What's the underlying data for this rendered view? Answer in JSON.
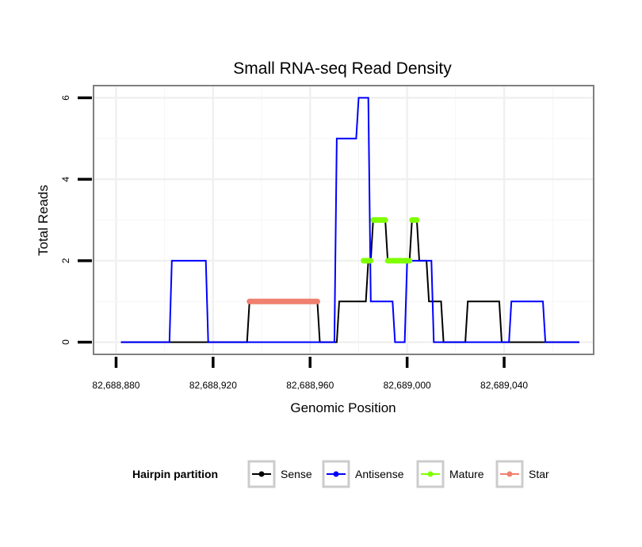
{
  "chart_data": {
    "type": "line",
    "title": "Small RNA-seq Read Density",
    "xlabel": "Genomic Position",
    "ylabel": "Total Reads",
    "xlim": [
      82688880,
      82689080
    ],
    "ylim": [
      -0.3,
      6.3
    ],
    "x_ticks": [
      82688880,
      82688920,
      82688960,
      82689000,
      82689040
    ],
    "x_tick_labels": [
      "82,688,880",
      "82,688,920",
      "82,688,960",
      "82,689,000",
      "82,689,040"
    ],
    "y_ticks": [
      0,
      2,
      4,
      6
    ],
    "y_tick_labels": [
      "0",
      "2",
      "4",
      "6"
    ],
    "grid": true,
    "legend": {
      "title": "Hairpin partition",
      "placement": "bottom",
      "entries": [
        "Sense",
        "Antisense",
        "Mature",
        "Star"
      ]
    },
    "series": [
      {
        "name": "Sense",
        "color": "#000000",
        "style": "line",
        "points": [
          [
            82688882,
            0
          ],
          [
            82688934,
            0
          ],
          [
            82688935,
            1
          ],
          [
            82688963,
            1
          ],
          [
            82688964,
            0
          ],
          [
            82688971,
            0
          ],
          [
            82688972,
            1
          ],
          [
            82688983,
            1
          ],
          [
            82688984,
            2
          ],
          [
            82688985,
            2
          ],
          [
            82688986,
            3
          ],
          [
            82688991,
            3
          ],
          [
            82688992,
            2
          ],
          [
            82689001,
            2
          ],
          [
            82689002,
            3
          ],
          [
            82689004,
            3
          ],
          [
            82689005,
            2
          ],
          [
            82689008,
            2
          ],
          [
            82689009,
            1
          ],
          [
            82689014,
            1
          ],
          [
            82689015,
            0
          ],
          [
            82689024,
            0
          ],
          [
            82689025,
            1
          ],
          [
            82689038,
            1
          ],
          [
            82689039,
            0
          ],
          [
            82689071,
            0
          ]
        ]
      },
      {
        "name": "Antisense",
        "color": "#0000ff",
        "style": "line",
        "points": [
          [
            82688882,
            0
          ],
          [
            82688902,
            0
          ],
          [
            82688903,
            2
          ],
          [
            82688917,
            2
          ],
          [
            82688918,
            0
          ],
          [
            82688970,
            0
          ],
          [
            82688971,
            5
          ],
          [
            82688979,
            5
          ],
          [
            82688980,
            6
          ],
          [
            82688984,
            6
          ],
          [
            82688985,
            1
          ],
          [
            82688994,
            1
          ],
          [
            82688995,
            0
          ],
          [
            82688999,
            0
          ],
          [
            82689000,
            2
          ],
          [
            82689010,
            2
          ],
          [
            82689011,
            0
          ],
          [
            82689042,
            0
          ],
          [
            82689043,
            1
          ],
          [
            82689056,
            1
          ],
          [
            82689057,
            0
          ],
          [
            82689071,
            0
          ]
        ]
      },
      {
        "name": "Mature",
        "color": "#7fff00",
        "style": "thick",
        "segments": [
          [
            [
              82688982,
              2
            ],
            [
              82688985,
              2
            ]
          ],
          [
            [
              82688986,
              3
            ],
            [
              82688991,
              3
            ]
          ],
          [
            [
              82688992,
              2
            ],
            [
              82689001,
              2
            ]
          ],
          [
            [
              82689002,
              3
            ],
            [
              82689004,
              3
            ]
          ]
        ]
      },
      {
        "name": "Star",
        "color": "#f08070",
        "style": "thick",
        "segments": [
          [
            [
              82688935,
              1
            ],
            [
              82688963,
              1
            ]
          ]
        ]
      }
    ]
  }
}
